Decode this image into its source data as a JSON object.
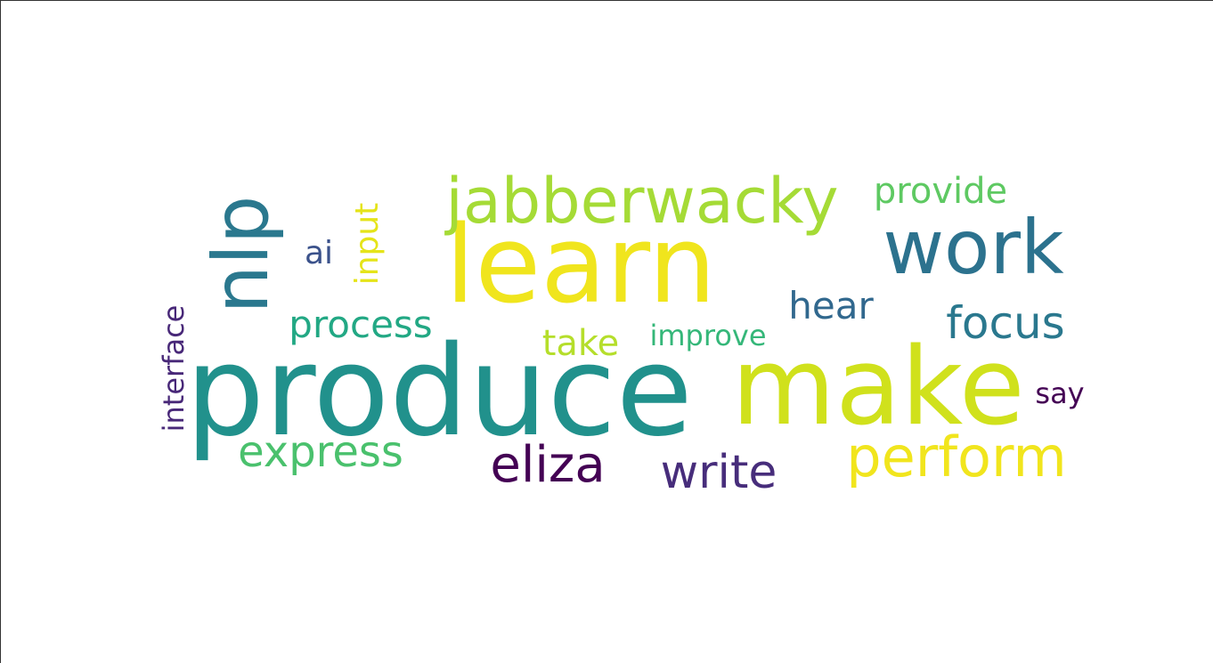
{
  "words": [
    {
      "text": "produce",
      "color": "#21918c",
      "weight": 1.0
    },
    {
      "text": "make",
      "color": "#d0e11c",
      "weight": 0.97
    },
    {
      "text": "learn",
      "color": "#f0e51d",
      "weight": 0.95
    },
    {
      "text": "nlp",
      "color": "#2a788e",
      "weight": 0.72
    },
    {
      "text": "work",
      "color": "#2c728e",
      "weight": 0.63
    },
    {
      "text": "jabberwacky",
      "color": "#a5db36",
      "weight": 0.52
    },
    {
      "text": "perform",
      "color": "#f1e51d",
      "weight": 0.5
    },
    {
      "text": "eliza",
      "color": "#440154",
      "weight": 0.45
    },
    {
      "text": "express",
      "color": "#4ac16d",
      "weight": 0.43
    },
    {
      "text": "focus",
      "color": "#2a788e",
      "weight": 0.42
    },
    {
      "text": "write",
      "color": "#472d7b",
      "weight": 0.42
    },
    {
      "text": "process",
      "color": "#22a884",
      "weight": 0.35
    },
    {
      "text": "hear",
      "color": "#31688e",
      "weight": 0.35
    },
    {
      "text": "take",
      "color": "#b5de2b",
      "weight": 0.34
    },
    {
      "text": "provide",
      "color": "#5ec962",
      "weight": 0.33
    },
    {
      "text": "input",
      "color": "#e5e419",
      "weight": 0.32
    },
    {
      "text": "ai",
      "color": "#3b528b",
      "weight": 0.31
    },
    {
      "text": "improve",
      "color": "#35b779",
      "weight": 0.28
    },
    {
      "text": "interface",
      "color": "#482878",
      "weight": 0.28
    },
    {
      "text": "say",
      "color": "#440154",
      "weight": 0.27
    }
  ]
}
